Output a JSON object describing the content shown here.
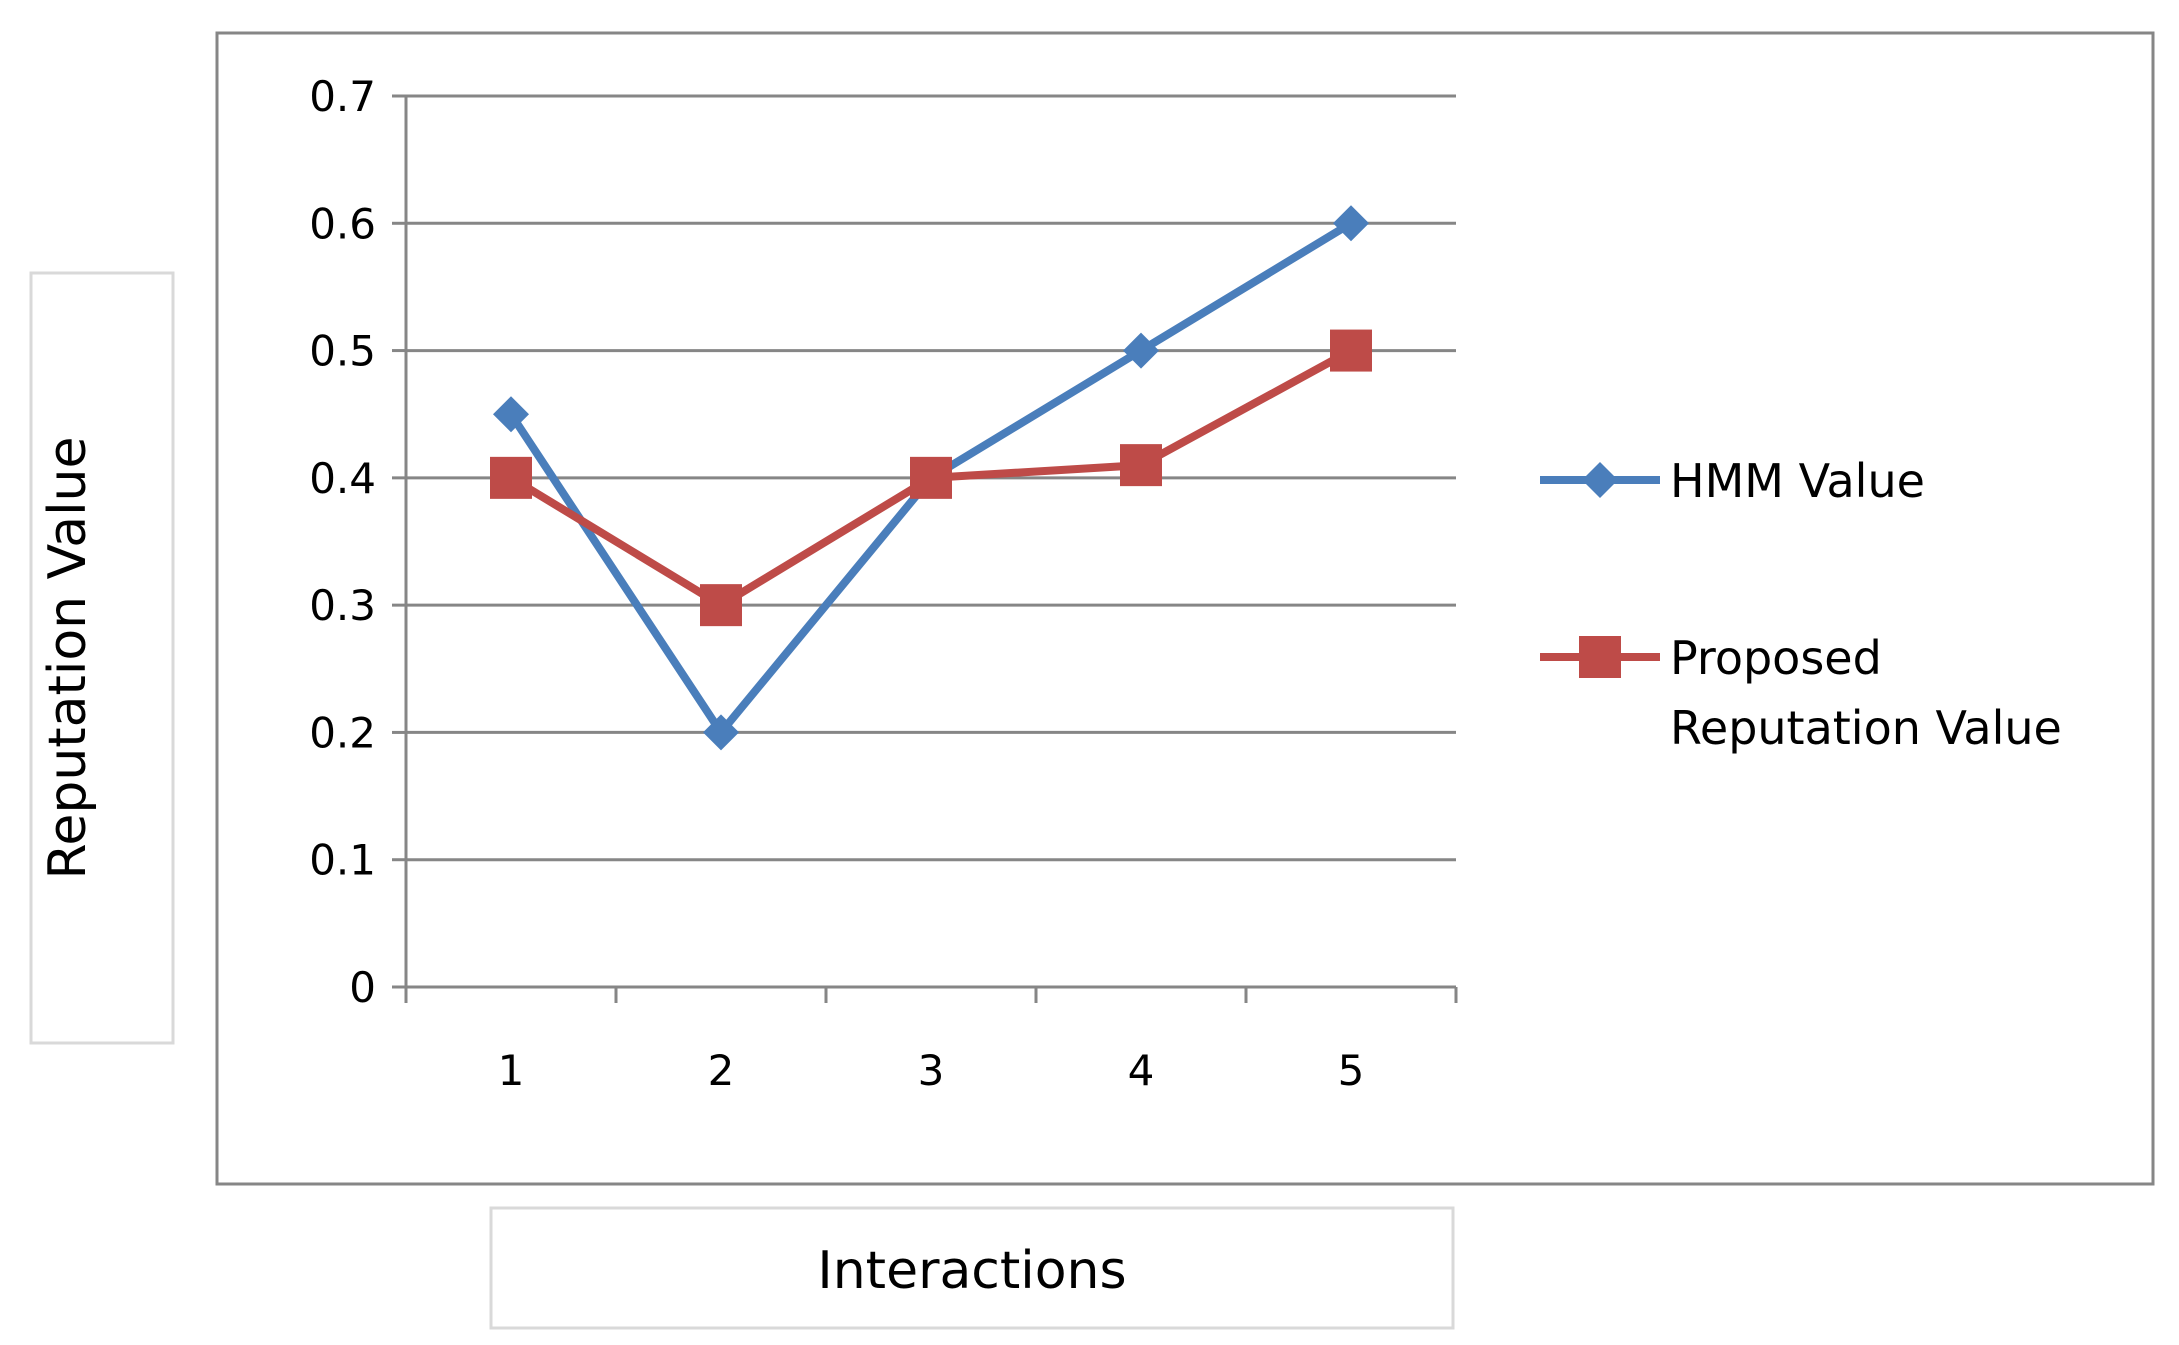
{
  "chart_data": {
    "type": "line",
    "title": "",
    "xlabel": "Interactions",
    "ylabel": "Reputation Value",
    "categories": [
      "1",
      "2",
      "3",
      "4",
      "5"
    ],
    "y_ticks": [
      "0",
      "0.1",
      "0.2",
      "0.3",
      "0.4",
      "0.5",
      "0.6",
      "0.7"
    ],
    "ylim": [
      0,
      0.7
    ],
    "grid": "horizontal",
    "legend_position": "right",
    "series": [
      {
        "name": "HMM Value",
        "legend_lines": [
          "HMM Value"
        ],
        "values": [
          0.45,
          0.2,
          0.4,
          0.5,
          0.6
        ],
        "color": "#4a7ebb",
        "marker": "diamond"
      },
      {
        "name": "Proposed Reputation Value",
        "legend_lines": [
          "Proposed",
          "Reputation Value"
        ],
        "values": [
          0.4,
          0.3,
          0.4,
          0.41,
          0.5
        ],
        "color": "#be4b48",
        "marker": "square"
      }
    ]
  }
}
